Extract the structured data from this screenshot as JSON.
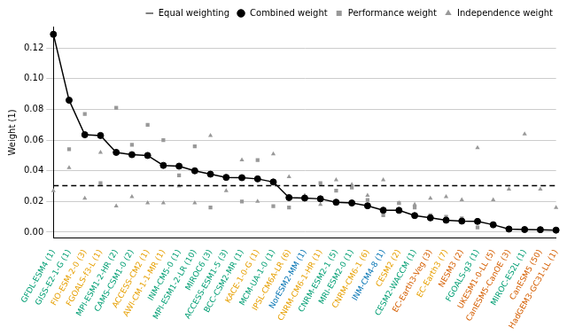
{
  "chart_data": {
    "type": "line",
    "y_label": "Weight (1)",
    "categories": [
      "GFDL-ESM4 (1)",
      "GISS-E2-1-G (1)",
      "FIO-ESM-2-0 (3)",
      "FGOALS-f3-L (1)",
      "MPI-ESM1-2-HR (2)",
      "CAMS-CSM1-0 (2)",
      "ACCESS-CM2 (1)",
      "AWI-CM-1-1-MR (1)",
      "INM-CM5-0 (1)",
      "MPI-ESM1-2-LR (10)",
      "MIROC6 (3)",
      "ACCESS-ESM1-5 (3)",
      "BCC-CSM2-MR (1)",
      "KACE-1-0-G (1)",
      "MCM-UA-1-0 (1)",
      "IPSL-CM6A-LR (6)",
      "NorESM2-MM (1)",
      "CNRM-CM6-1-HR (1)",
      "CNRM-ESM2-1 (5)",
      "MRI-ESM2-0 (1)",
      "CNRM-CM6-1 (6)",
      "INM-CM4-8 (1)",
      "CESM2 (2)",
      "CESM2-WACCM (1)",
      "EC-Earth3-Veg (3)",
      "EC-Earth3 (7)",
      "NESM3 (2)",
      "FGOALS-g3 (1)",
      "UKESM1-0-LL (5)",
      "CanESM5-CanOE (3)",
      "MIROC-ES2L (1)",
      "CanESM5 (50)",
      "HadGEM3-GC31-LL (1)"
    ],
    "series": [
      {
        "name": "Equal weighting",
        "color": "#000000",
        "marker": "none",
        "line_style": "dashed",
        "values": [
          0.0303,
          0.0303,
          0.0303,
          0.0303,
          0.0303,
          0.0303,
          0.0303,
          0.0303,
          0.0303,
          0.0303,
          0.0303,
          0.0303,
          0.0303,
          0.0303,
          0.0303,
          0.0303,
          0.0303,
          0.0303,
          0.0303,
          0.0303,
          0.0303,
          0.0303,
          0.0303,
          0.0303,
          0.0303,
          0.0303,
          0.0303,
          0.0303,
          0.0303,
          0.0303,
          0.0303,
          0.0303,
          0.0303
        ]
      },
      {
        "name": "Combined weight",
        "color": "#000000",
        "marker": "circle",
        "line_style": "solid",
        "values": [
          0.129,
          0.086,
          0.0635,
          0.063,
          0.052,
          0.0505,
          0.05,
          0.0435,
          0.043,
          0.04,
          0.0378,
          0.0357,
          0.0355,
          0.0347,
          0.0327,
          0.0225,
          0.0222,
          0.0217,
          0.0195,
          0.019,
          0.0172,
          0.0143,
          0.0142,
          0.0108,
          0.0093,
          0.0078,
          0.0072,
          0.007,
          0.0048,
          0.002,
          0.0017,
          0.0016,
          0.0013
        ]
      },
      {
        "name": "Performance weight",
        "color": "#999999",
        "marker": "square",
        "line_style": "none",
        "values": [
          0.128,
          0.054,
          0.077,
          0.032,
          0.081,
          0.057,
          0.07,
          0.06,
          0.037,
          0.056,
          0.016,
          0.036,
          0.02,
          0.047,
          0.017,
          0.016,
          0.022,
          0.032,
          0.027,
          0.029,
          0.021,
          0.011,
          0.019,
          0.016,
          0.011,
          0.01,
          0.009,
          0.003,
          0.004,
          0.002,
          0.001,
          0.001,
          0.001
        ]
      },
      {
        "name": "Independence weight",
        "color": "#999999",
        "marker": "triangle",
        "line_style": "none",
        "values": [
          0.027,
          0.042,
          0.022,
          0.052,
          0.017,
          0.023,
          0.019,
          0.019,
          0.03,
          0.019,
          0.063,
          0.027,
          0.047,
          0.02,
          0.051,
          0.036,
          0.024,
          0.018,
          0.034,
          0.031,
          0.024,
          0.034,
          0.019,
          0.018,
          0.022,
          0.023,
          0.021,
          0.055,
          0.021,
          0.028,
          0.064,
          0.028,
          0.016
        ]
      }
    ],
    "ylim": [
      -0.004,
      0.134
    ],
    "yticks": [
      {
        "value": 0,
        "label": "0.00"
      },
      {
        "value": 0.02,
        "label": "0.02"
      },
      {
        "value": 0.04,
        "label": "0.04"
      },
      {
        "value": 0.06,
        "label": "0.06"
      },
      {
        "value": 0.08,
        "label": "0.08"
      },
      {
        "value": 0.1,
        "label": "0.10"
      },
      {
        "value": 0.12,
        "label": "0.12"
      }
    ],
    "grid": true,
    "legend": "upper right"
  }
}
